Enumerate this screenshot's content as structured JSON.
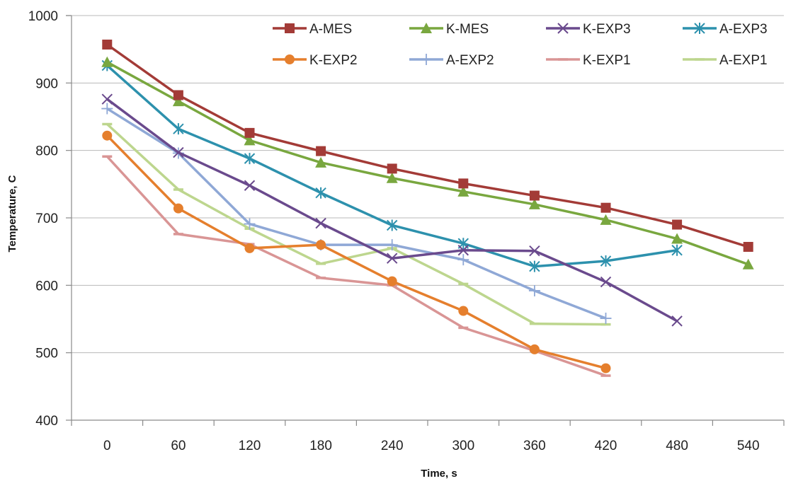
{
  "chart_data": {
    "type": "line",
    "xlabel": "Time, s",
    "ylabel": "Temperature, C",
    "x": [
      0,
      60,
      120,
      180,
      240,
      300,
      360,
      420,
      480,
      540
    ],
    "ylim": [
      400,
      1000
    ],
    "yticks": [
      400,
      500,
      600,
      700,
      800,
      900,
      1000
    ],
    "grid": "horizontal",
    "legend": "top-right",
    "series": [
      {
        "name": "A-MES",
        "color": "#a33b37",
        "marker": "square",
        "values": [
          957,
          882,
          826,
          799,
          773,
          751,
          733,
          715,
          690,
          657
        ]
      },
      {
        "name": "K-MES",
        "color": "#79a73f",
        "marker": "triangle",
        "values": [
          931,
          873,
          815,
          782,
          759,
          739,
          720,
          697,
          669,
          631
        ]
      },
      {
        "name": "K-EXP3",
        "color": "#6a4a8d",
        "marker": "x",
        "values": [
          876,
          797,
          748,
          692,
          640,
          652,
          651,
          605,
          547,
          null
        ]
      },
      {
        "name": "A-EXP3",
        "color": "#2d91ad",
        "marker": "asterisk",
        "values": [
          926,
          832,
          788,
          737,
          689,
          662,
          628,
          636,
          652,
          null
        ]
      },
      {
        "name": "K-EXP2",
        "color": "#e57f2d",
        "marker": "circle",
        "values": [
          822,
          714,
          655,
          660,
          606,
          562,
          505,
          477,
          null,
          null
        ]
      },
      {
        "name": "A-EXP2",
        "color": "#8fa8d6",
        "marker": "plus",
        "values": [
          862,
          796,
          691,
          660,
          660,
          638,
          592,
          551,
          null,
          null
        ]
      },
      {
        "name": "K-EXP1",
        "color": "#d99595",
        "marker": "dash",
        "values": [
          791,
          676,
          661,
          611,
          600,
          537,
          503,
          466,
          null,
          null
        ]
      },
      {
        "name": "A-EXP1",
        "color": "#bdd68e",
        "marker": "dash",
        "values": [
          839,
          742,
          684,
          632,
          655,
          602,
          543,
          542,
          null,
          null
        ]
      }
    ]
  }
}
